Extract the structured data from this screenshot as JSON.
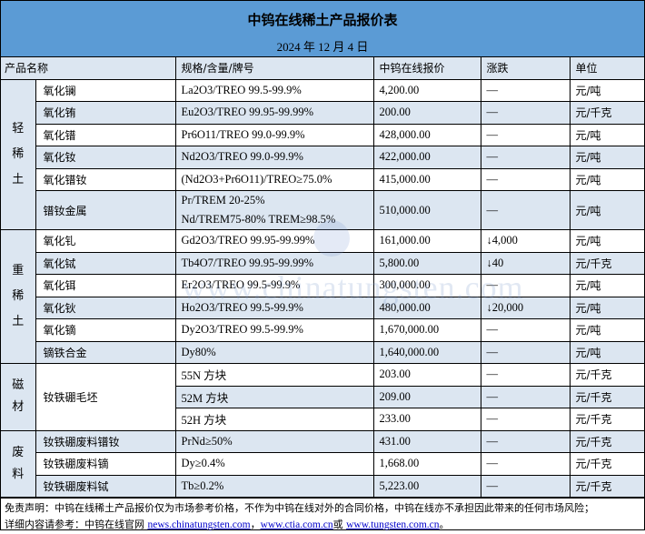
{
  "title": "中钨在线稀土产品报价表",
  "date": "2024 年 12 月 4 日",
  "headers": [
    "产品名称",
    "规格/含量/牌号",
    "中钨在线报价",
    "涨跌",
    "单位"
  ],
  "groups": [
    {
      "category": "轻稀土",
      "rows": [
        {
          "name": "氧化镧",
          "spec": [
            "La2O3/TREO 99.5-99.9%"
          ],
          "price": "4,200.00",
          "change": "—",
          "unit": "元/吨"
        },
        {
          "name": "氧化铕",
          "spec": [
            "Eu2O3/TREO 99.95-99.99%"
          ],
          "price": "200.00",
          "change": "—",
          "unit": "元/千克"
        },
        {
          "name": "氧化镨",
          "spec": [
            "Pr6O11/TREO 99.0-99.9%"
          ],
          "price": "428,000.00",
          "change": "—",
          "unit": "元/吨"
        },
        {
          "name": "氧化钕",
          "spec": [
            "Nd2O3/TREO 99.0-99.9%"
          ],
          "price": "422,000.00",
          "change": "—",
          "unit": "元/吨"
        },
        {
          "name": "氧化镨钕",
          "spec": [
            "(Nd2O3+Pr6O11)/TREO≥75.0%"
          ],
          "price": "415,000.00",
          "change": "—",
          "unit": "元/吨"
        },
        {
          "name": "镨钕金属",
          "spec": [
            "Pr/TREM 20-25%",
            "Nd/TREM75-80% TREM≥98.5%"
          ],
          "price": "510,000.00",
          "change": "—",
          "unit": "元/吨"
        }
      ]
    },
    {
      "category": "重稀土",
      "rows": [
        {
          "name": "氧化钆",
          "spec": [
            "Gd2O3/TREO 99.95-99.99%"
          ],
          "price": "161,000.00",
          "change": "↓4,000",
          "unit": "元/吨"
        },
        {
          "name": "氧化铽",
          "spec": [
            "Tb4O7/TREO 99.95-99.99%"
          ],
          "price": "5,800.00",
          "change": "↓40",
          "unit": "元/千克"
        },
        {
          "name": "氧化铒",
          "spec": [
            "Er2O3/TREO 99.5-99.9%"
          ],
          "price": "300,000.00",
          "change": "—",
          "unit": "元/吨"
        },
        {
          "name": "氧化钬",
          "spec": [
            "Ho2O3/TREO 99.5-99.9%"
          ],
          "price": "480,000.00",
          "change": "↓20,000",
          "unit": "元/吨"
        },
        {
          "name": "氧化镝",
          "spec": [
            "Dy2O3/TREO 99.5-99.9%"
          ],
          "price": "1,670,000.00",
          "change": "—",
          "unit": "元/吨"
        },
        {
          "name": "镝铁合金",
          "spec": [
            "Dy80%"
          ],
          "price": "1,640,000.00",
          "change": "—",
          "unit": "元/吨"
        }
      ]
    },
    {
      "category": "磁材",
      "merged_name": "钕铁硼毛坯",
      "rows": [
        {
          "spec": [
            "55N 方块"
          ],
          "price": "203.00",
          "change": "—",
          "unit": "元/千克"
        },
        {
          "spec": [
            "52M 方块"
          ],
          "price": "209.00",
          "change": "—",
          "unit": "元/千克"
        },
        {
          "spec": [
            "52H 方块"
          ],
          "price": "233.00",
          "change": "—",
          "unit": "元/千克"
        }
      ]
    },
    {
      "category": "废料",
      "rows": [
        {
          "name": "钕铁硼废料镨钕",
          "spec": [
            "PrNd≥50%"
          ],
          "price": "431.00",
          "change": "—",
          "unit": "元/千克"
        },
        {
          "name": "钕铁硼废料镝",
          "spec": [
            "Dy≥0.4%"
          ],
          "price": "1,668.00",
          "change": "—",
          "unit": "元/千克"
        },
        {
          "name": "钕铁硼废料铽",
          "spec": [
            "Tb≥0.2%"
          ],
          "price": "5,223.00",
          "change": "—",
          "unit": "元/千克"
        }
      ]
    }
  ],
  "footer": {
    "disclaimer": "免责声明：中钨在线稀土产品报价仅为市场参考价格，不作为中钨在线对外的合同价格，中钨在线亦不承担因此带来的任何市场风险；",
    "ref_prefix": "详细内容请参考：中钨在线官网 ",
    "link1": "news.chinatungsten.com",
    "sep1": "，",
    "link2": "www.ctia.com.cn",
    "sep2": "或 ",
    "link3": "www.tungsten.com.cn",
    "end": "。"
  },
  "watermark": "www.chinatungsten.com",
  "colors": {
    "header_bg": "#5b9bd5",
    "row_alt": "#dce6f1"
  }
}
